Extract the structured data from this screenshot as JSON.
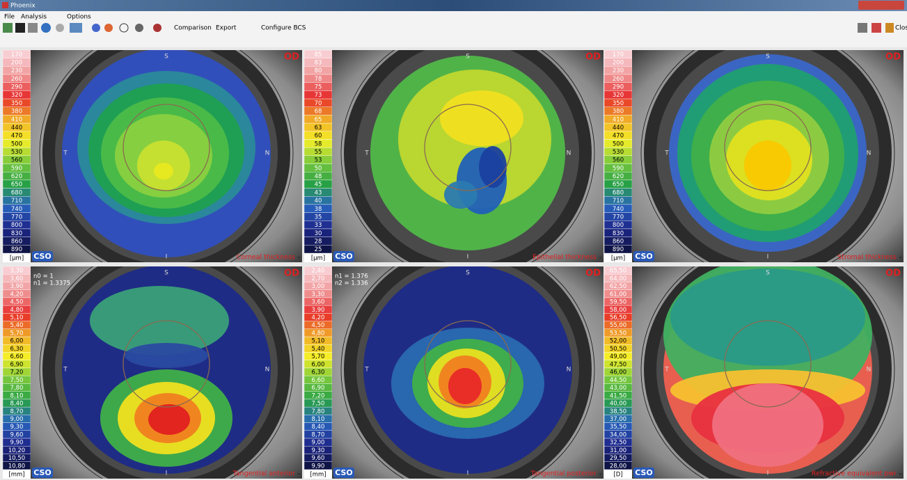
{
  "window": {
    "title": "Phoenix",
    "menu": [
      "File",
      "Analysis",
      "Options"
    ],
    "toolbar": [
      "Comparison",
      "Export",
      "Configure BCS"
    ],
    "close": "Close"
  },
  "panels": [
    {
      "title": "Corneal thickness",
      "unit": "[µm]",
      "eye": "OD",
      "logo": "CSO",
      "orientation": [
        "S",
        "T",
        "N",
        "I"
      ],
      "notes": [],
      "scale": [
        "170",
        "200",
        "230",
        "260",
        "290",
        "320",
        "350",
        "380",
        "410",
        "440",
        "470",
        "500",
        "530",
        "560",
        "590",
        "620",
        "650",
        "680",
        "710",
        "740",
        "770",
        "800",
        "830",
        "860",
        "890"
      ]
    },
    {
      "title": "Epithelial thickness",
      "unit": "[µm]",
      "eye": "OD",
      "logo": "CSO",
      "orientation": [
        "S",
        "T",
        "N",
        "I"
      ],
      "notes": [],
      "scale": [
        "85",
        "83",
        "80",
        "78",
        "75",
        "73",
        "70",
        "68",
        "65",
        "63",
        "60",
        "58",
        "55",
        "53",
        "50",
        "48",
        "45",
        "43",
        "40",
        "38",
        "35",
        "33",
        "30",
        "28",
        "25"
      ]
    },
    {
      "title": "Stromal thickness",
      "unit": "[µm]",
      "eye": "OD",
      "logo": "CSO",
      "orientation": [
        "S",
        "T",
        "N",
        "I"
      ],
      "notes": [],
      "scale": [
        "170",
        "200",
        "230",
        "260",
        "290",
        "320",
        "350",
        "380",
        "410",
        "440",
        "470",
        "500",
        "530",
        "560",
        "590",
        "620",
        "650",
        "680",
        "710",
        "740",
        "770",
        "800",
        "830",
        "860",
        "890"
      ]
    },
    {
      "title": "Tangential anterior",
      "unit": "[mm]",
      "eye": "OD",
      "logo": "CSO",
      "orientation": [
        "S",
        "T",
        "N",
        "I"
      ],
      "notes": [
        "n0 = 1",
        "n1 = 1.3375"
      ],
      "scale": [
        "3,30",
        "3,60",
        "3,90",
        "4,20",
        "4,50",
        "4,80",
        "5,10",
        "5,40",
        "5,70",
        "6,00",
        "6,30",
        "6,60",
        "6,90",
        "7,20",
        "7,50",
        "7,80",
        "8,10",
        "8,40",
        "8,70",
        "9,00",
        "9,30",
        "9,60",
        "9,90",
        "10,20",
        "10,50",
        "10,80"
      ]
    },
    {
      "title": "Tangential  posterior",
      "unit": "[mm]",
      "eye": "OD",
      "logo": "CSO",
      "orientation": [
        "S",
        "T",
        "N",
        "I"
      ],
      "notes": [
        "n1 = 1.376",
        "n2 = 1.336"
      ],
      "scale": [
        "2,40",
        "2,70",
        "3,00",
        "3,30",
        "3,60",
        "3,90",
        "4,20",
        "4,50",
        "4,80",
        "5,10",
        "5,40",
        "5,70",
        "6,00",
        "6,30",
        "6,60",
        "6,90",
        "7,20",
        "7,50",
        "7,80",
        "8,10",
        "8,40",
        "8,70",
        "9,00",
        "9,30",
        "9,60",
        "9,90"
      ]
    },
    {
      "title": "Refractive equivalent pwr",
      "unit": "[D]",
      "eye": "OD",
      "logo": "CSO",
      "orientation": [
        "S",
        "T",
        "N",
        "I"
      ],
      "notes": [],
      "scale": [
        "65,50",
        "64,00",
        "62,50",
        "61,00",
        "59,50",
        "58,00",
        "56,50",
        "55,00",
        "53,50",
        "52,00",
        "50,50",
        "49,00",
        "47,50",
        "46,00",
        "44,50",
        "43,00",
        "41,50",
        "40,00",
        "38,50",
        "37,00",
        "35,50",
        "34,00",
        "32,50",
        "31,00",
        "29,50",
        "28,00"
      ]
    }
  ]
}
